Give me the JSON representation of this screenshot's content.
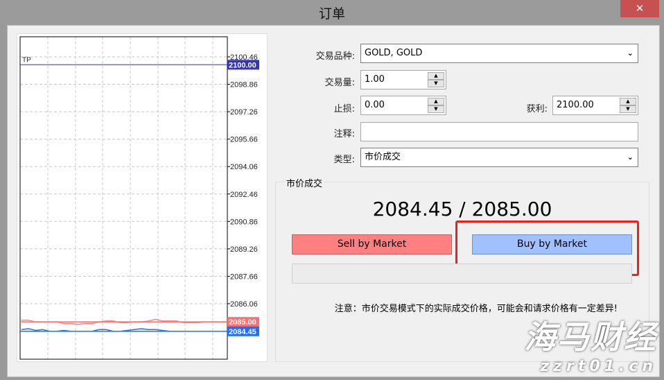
{
  "window": {
    "title": "订单",
    "close_icon": "close-icon"
  },
  "form": {
    "symbol_label": "交易品种:",
    "symbol_value": "GOLD, GOLD",
    "volume_label": "交易量:",
    "volume_value": "1.00",
    "sl_label": "止损:",
    "sl_value": "0.00",
    "tp_label": "获利:",
    "tp_value": "2100.00",
    "comment_label": "注释:",
    "comment_value": "",
    "type_label": "类型:",
    "type_value": "市价成交"
  },
  "market": {
    "group_label": "市价成交",
    "price": "2084.45 / 2085.00",
    "sell_label": "Sell by Market",
    "buy_label": "Buy by Market",
    "note": "注意：市价交易模式下的实际成交价格，可能会和请求价格有一定差异!",
    "highlight_color": "#e8231f"
  },
  "watermark": {
    "line1": "海马财经",
    "line2": "zzrt01.cn"
  },
  "chart_data": {
    "type": "line",
    "y_ticks": [
      "2100.46",
      "2098.86",
      "2097.26",
      "2095.66",
      "2094.06",
      "2092.46",
      "2090.86",
      "2089.26",
      "2087.66",
      "2086.06"
    ],
    "ylim": [
      2083.7,
      2101.6
    ],
    "grid": true,
    "tp_label": "TP",
    "levels": [
      {
        "name": "tp",
        "value": 2100.0,
        "label": "2100.00",
        "color": "#3333bb"
      },
      {
        "name": "ask",
        "value": 2085.0,
        "label": "2085.00",
        "color": "#ff6f6f"
      },
      {
        "name": "bid",
        "value": 2084.45,
        "label": "2084.45",
        "color": "#1e6fff"
      }
    ],
    "series": [
      {
        "values": [
          2085.1,
          2085.1,
          2085.0,
          2085.0,
          2085.0,
          2085.0,
          2084.9,
          2084.9,
          2084.85,
          2084.9,
          2084.9,
          2085.0,
          2085.05,
          2085.05,
          2084.95,
          2084.95,
          2085.0,
          2085.0,
          2085.05,
          2085.15,
          2085.05,
          2085.05,
          2085.05,
          2084.95,
          2084.95,
          2084.95,
          2085.0,
          2085.0,
          2085.0,
          2085.0
        ],
        "color": "#ff7f7f"
      },
      {
        "values": [
          2084.55,
          2084.6,
          2084.5,
          2084.55,
          2084.45,
          2084.45,
          2084.5,
          2084.45,
          2084.45,
          2084.45,
          2084.45,
          2084.55,
          2084.55,
          2084.45,
          2084.45,
          2084.5,
          2084.55,
          2084.6,
          2084.55,
          2084.55,
          2084.5,
          2084.45,
          2084.45,
          2084.45,
          2084.45,
          2084.45,
          2084.45,
          2084.45,
          2084.45,
          2084.45
        ],
        "color": "#1e6fff"
      }
    ]
  }
}
